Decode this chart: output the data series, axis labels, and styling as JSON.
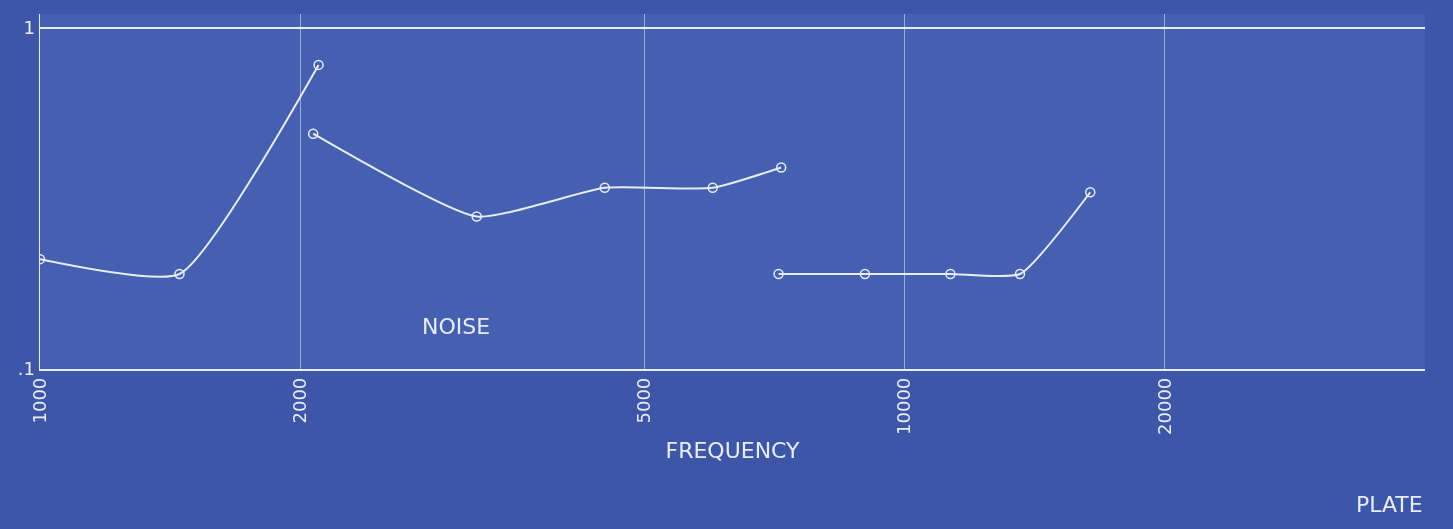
{
  "chart_data": {
    "type": "line",
    "xlabel": "FREQUENCY",
    "annotations": [
      "NOISE",
      "PLATE"
    ],
    "log": "xy",
    "xlim": [
      1000,
      40000
    ],
    "ylim": [
      0.1,
      1.1
    ],
    "xticks": [
      1000,
      2000,
      5000,
      10000,
      20000
    ],
    "yticks": [
      {
        "value": 0.1,
        "label": ".1"
      },
      1
    ],
    "grid": true,
    "marker": "circle",
    "line_style": "solid",
    "ref_lines": [
      {
        "axis": "y",
        "value": 1,
        "color": "#e8ecf8"
      }
    ],
    "series": [
      {
        "color": "#e8ecf8",
        "x": [
          1000,
          1450,
          2100
        ],
        "values": [
          0.21,
          0.19,
          0.78
        ]
      },
      {
        "color": "#e8ecf8",
        "x": [
          2070,
          3200,
          4500,
          6000,
          7200
        ],
        "values": [
          0.49,
          0.28,
          0.34,
          0.34,
          0.39
        ]
      },
      {
        "color": "#e8ecf8",
        "x": [
          7150,
          9000,
          11300,
          13600,
          16400
        ],
        "values": [
          0.19,
          0.19,
          0.19,
          0.19,
          0.33
        ]
      }
    ]
  }
}
